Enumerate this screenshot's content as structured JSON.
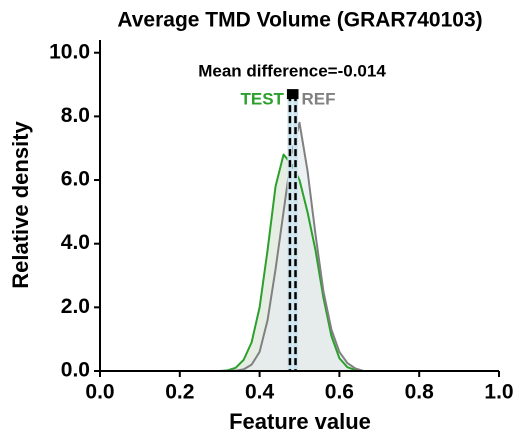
{
  "chart_data": {
    "type": "density",
    "title": "Average TMD Volume (GRAR740103)",
    "xlabel": "Feature value",
    "ylabel": "Relative density",
    "annotation": "Mean difference=-0.014",
    "x": [
      0.3,
      0.32,
      0.34,
      0.36,
      0.38,
      0.4,
      0.42,
      0.44,
      0.46,
      0.48,
      0.5,
      0.52,
      0.54,
      0.56,
      0.58,
      0.6,
      0.62,
      0.64,
      0.66
    ],
    "series": [
      {
        "name": "TEST",
        "color": "#2ca02c",
        "fill": "#dbe7d8",
        "mean": 0.476,
        "values": [
          0,
          0.02,
          0.1,
          0.35,
          0.9,
          2.0,
          3.8,
          5.8,
          6.8,
          6.5,
          6.0,
          5.0,
          3.8,
          2.3,
          1.1,
          0.4,
          0.12,
          0.03,
          0
        ]
      },
      {
        "name": "REF",
        "color": "#808080",
        "fill": "#e4ebee",
        "mean": 0.49,
        "values": [
          0,
          0,
          0.01,
          0.05,
          0.2,
          0.6,
          1.6,
          3.2,
          5.0,
          6.8,
          7.8,
          6.3,
          4.3,
          2.5,
          1.3,
          0.6,
          0.25,
          0.08,
          0
        ]
      }
    ],
    "mean_marker_y": 8.7,
    "xlim": [
      0,
      1
    ],
    "ylim": [
      0,
      10.4
    ],
    "xticks": [
      {
        "value": 0,
        "label": "0.0"
      },
      {
        "value": 0.2,
        "label": "0.2"
      },
      {
        "value": 0.4,
        "label": "0.4"
      },
      {
        "value": 0.6,
        "label": "0.6"
      },
      {
        "value": 0.8,
        "label": "0.8"
      },
      {
        "value": 1,
        "label": "1.0"
      }
    ],
    "yticks": [
      {
        "value": 0,
        "label": "0.0"
      },
      {
        "value": 2,
        "label": "2.0"
      },
      {
        "value": 4,
        "label": "4.0"
      },
      {
        "value": 6,
        "label": "6.0"
      },
      {
        "value": 8,
        "label": "8.0"
      },
      {
        "value": 10,
        "label": "10.0"
      }
    ]
  }
}
